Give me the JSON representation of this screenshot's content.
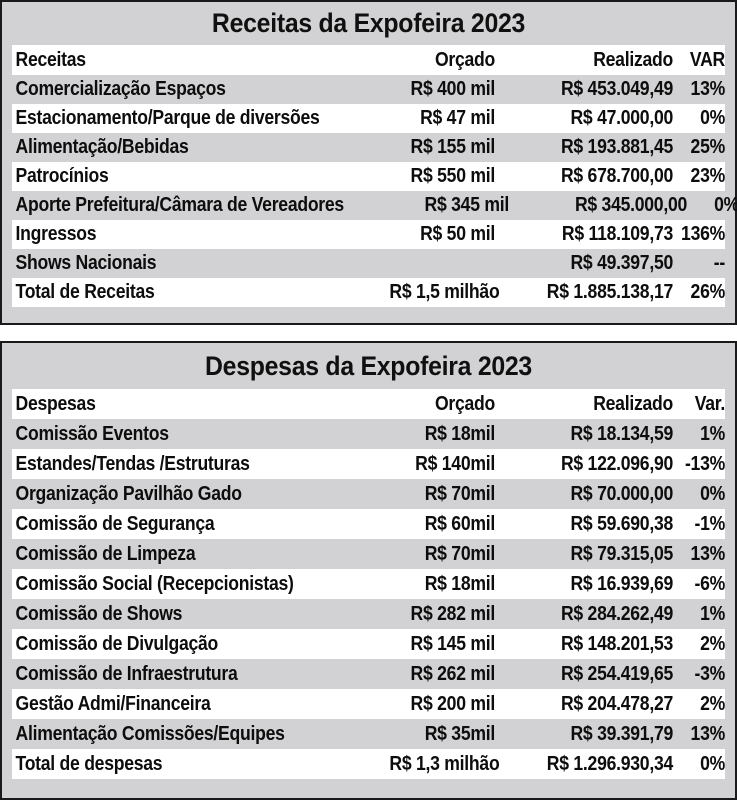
{
  "colors": {
    "table_background": "#d2d2d4",
    "row_highlight": "#ffffff",
    "border": "#1a1a1c",
    "text": "#0d0d0d"
  },
  "chart_data": [
    {
      "type": "table",
      "title": "Receitas da Expofeira 2023",
      "columns": [
        "Receitas",
        "Orçado",
        "Realizado",
        "VAR"
      ],
      "rows": [
        [
          "Comercialização Espaços",
          "R$ 400 mil",
          "R$ 453.049,49",
          "13%"
        ],
        [
          "Estacionamento/Parque de diversões",
          "R$ 47 mil",
          "R$ 47.000,00",
          "0%"
        ],
        [
          "Alimentação/Bebidas",
          "R$ 155 mil",
          "R$ 193.881,45",
          "25%"
        ],
        [
          "Patrocínios",
          "R$ 550 mil",
          "R$ 678.700,00",
          "23%"
        ],
        [
          "Aporte Prefeitura/Câmara de Vereadores",
          "R$ 345 mil",
          "R$ 345.000,00",
          "0%"
        ],
        [
          "Ingressos",
          "R$ 50 mil",
          "R$ 118.109,73",
          "136%"
        ],
        [
          "Shows Nacionais",
          "",
          "R$ 49.397,50",
          "--"
        ],
        [
          "Total de Receitas",
          "R$ 1,5 milhão",
          "R$ 1.885.138,17",
          "26%"
        ]
      ]
    },
    {
      "type": "table",
      "title": "Despesas da Expofeira 2023",
      "columns": [
        "Despesas",
        "Orçado",
        "Realizado",
        "Var."
      ],
      "rows": [
        [
          "Comissão Eventos",
          "R$ 18mil",
          "R$ 18.134,59",
          "1%"
        ],
        [
          "Estandes/Tendas /Estruturas",
          "R$ 140mil",
          "R$ 122.096,90",
          "-13%"
        ],
        [
          "Organização Pavilhão Gado",
          "R$ 70mil",
          "R$ 70.000,00",
          "0%"
        ],
        [
          "Comissão de Segurança",
          "R$ 60mil",
          "R$ 59.690,38",
          "-1%"
        ],
        [
          "Comissão de Limpeza",
          "R$ 70mil",
          "R$ 79.315,05",
          "13%"
        ],
        [
          "Comissão Social (Recepcionistas)",
          "R$ 18mil",
          "R$ 16.939,69",
          "-6%"
        ],
        [
          "Comissão de Shows",
          "R$ 282 mil",
          "R$ 284.262,49",
          "1%"
        ],
        [
          "Comissão de Divulgação",
          "R$ 145 mil",
          "R$ 148.201,53",
          "2%"
        ],
        [
          "Comissão de Infraestrutura",
          "R$ 262 mil",
          "R$ 254.419,65",
          "-3%"
        ],
        [
          "Gestão Admi/Financeira",
          "R$ 200 mil",
          "R$ 204.478,27",
          "2%"
        ],
        [
          "Alimentação Comissões/Equipes",
          "R$ 35mil",
          "R$ 39.391,79",
          "13%"
        ],
        [
          "Total de despesas",
          "R$ 1,3 milhão",
          "R$ 1.296.930,34",
          "0%"
        ]
      ]
    }
  ]
}
